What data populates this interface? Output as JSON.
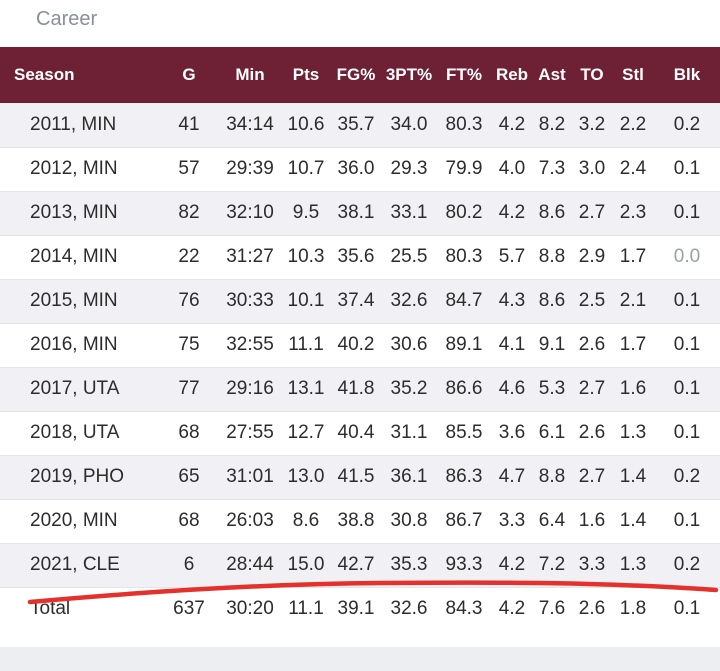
{
  "section_title": "Career",
  "columns": [
    "Season",
    "G",
    "Min",
    "Pts",
    "FG%",
    "3PT%",
    "FT%",
    "Reb",
    "Ast",
    "TO",
    "Stl",
    "Blk"
  ],
  "rows": [
    [
      "2011, MIN",
      "41",
      "34:14",
      "10.6",
      "35.7",
      "34.0",
      "80.3",
      "4.2",
      "8.2",
      "3.2",
      "2.2",
      "0.2"
    ],
    [
      "2012, MIN",
      "57",
      "29:39",
      "10.7",
      "36.0",
      "29.3",
      "79.9",
      "4.0",
      "7.3",
      "3.0",
      "2.4",
      "0.1"
    ],
    [
      "2013, MIN",
      "82",
      "32:10",
      "9.5",
      "38.1",
      "33.1",
      "80.2",
      "4.2",
      "8.6",
      "2.7",
      "2.3",
      "0.1"
    ],
    [
      "2014, MIN",
      "22",
      "31:27",
      "10.3",
      "35.6",
      "25.5",
      "80.3",
      "5.7",
      "8.8",
      "2.9",
      "1.7",
      "0.0"
    ],
    [
      "2015, MIN",
      "76",
      "30:33",
      "10.1",
      "37.4",
      "32.6",
      "84.7",
      "4.3",
      "8.6",
      "2.5",
      "2.1",
      "0.1"
    ],
    [
      "2016, MIN",
      "75",
      "32:55",
      "11.1",
      "40.2",
      "30.6",
      "89.1",
      "4.1",
      "9.1",
      "2.6",
      "1.7",
      "0.1"
    ],
    [
      "2017, UTA",
      "77",
      "29:16",
      "13.1",
      "41.8",
      "35.2",
      "86.6",
      "4.6",
      "5.3",
      "2.7",
      "1.6",
      "0.1"
    ],
    [
      "2018, UTA",
      "68",
      "27:55",
      "12.7",
      "40.4",
      "31.1",
      "85.5",
      "3.6",
      "6.1",
      "2.6",
      "1.3",
      "0.1"
    ],
    [
      "2019, PHO",
      "65",
      "31:01",
      "13.0",
      "41.5",
      "36.1",
      "86.3",
      "4.7",
      "8.8",
      "2.7",
      "1.4",
      "0.2"
    ],
    [
      "2020, MIN",
      "68",
      "26:03",
      "8.6",
      "38.8",
      "30.8",
      "86.7",
      "3.3",
      "6.4",
      "1.6",
      "1.4",
      "0.1"
    ],
    [
      "2021, CLE",
      "6",
      "28:44",
      "15.0",
      "42.7",
      "35.3",
      "93.3",
      "4.2",
      "7.2",
      "3.3",
      "1.3",
      "0.2"
    ]
  ],
  "total": [
    "Total",
    "637",
    "30:20",
    "11.1",
    "39.1",
    "32.6",
    "84.3",
    "4.2",
    "7.6",
    "2.6",
    "1.8",
    "0.1"
  ],
  "colors": {
    "header_bg": "#6e2134",
    "header_text": "#ffffff",
    "row_alt_bg": "#f1f1f5",
    "annotation_line": "#e5312b"
  }
}
